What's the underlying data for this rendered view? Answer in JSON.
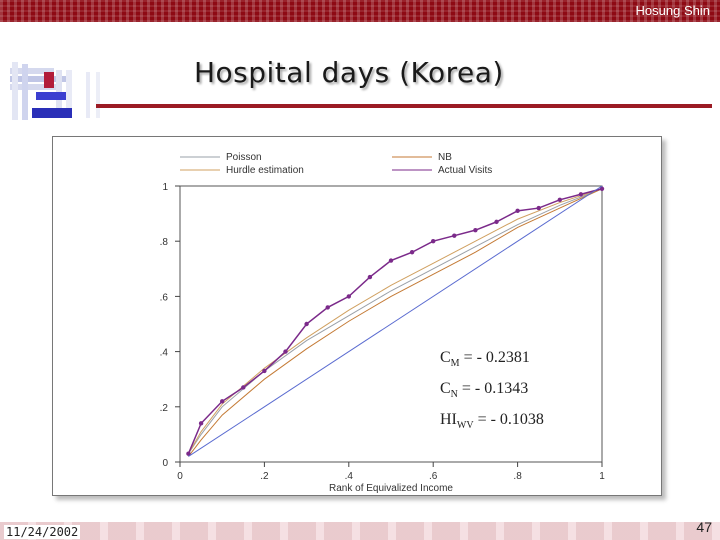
{
  "header": {
    "author": "Hosung Shin"
  },
  "slide": {
    "title": "Hospital days (Korea)",
    "date": "11/24/2002",
    "page_number": "47"
  },
  "stats": {
    "cm": {
      "base": "C",
      "sub": "M",
      "value": "=   - 0.2381"
    },
    "cn": {
      "base": "C",
      "sub": "N",
      "value": "=   - 0.1343"
    },
    "hi": {
      "base": "HI",
      "sub": "WV",
      "value": "= - 0.1038"
    }
  },
  "chart_data": {
    "type": "line",
    "xlabel": "Rank of Equivalized Income",
    "ylabel": "",
    "xlim": [
      0,
      1
    ],
    "ylim": [
      0,
      1
    ],
    "x_ticks": [
      0,
      0.2,
      0.4,
      0.6,
      0.8,
      1
    ],
    "x_tick_labels": [
      "0",
      ".2",
      ".4",
      ".6",
      ".8",
      "1"
    ],
    "y_ticks": [
      0,
      0.2,
      0.4,
      0.6,
      0.8,
      1
    ],
    "y_tick_labels": [
      "0",
      ".2",
      ".4",
      ".6",
      ".8",
      "1"
    ],
    "legend": [
      "Poisson",
      "NB",
      "Hurdle estimation",
      "Actual Visits"
    ],
    "legend_position": "top",
    "series": [
      {
        "name": "Poisson",
        "color": "#9aa0a8",
        "x": [
          0.02,
          0.05,
          0.1,
          0.2,
          0.3,
          0.4,
          0.5,
          0.6,
          0.7,
          0.8,
          0.9,
          1.0
        ],
        "y": [
          0.03,
          0.1,
          0.2,
          0.33,
          0.44,
          0.53,
          0.62,
          0.7,
          0.78,
          0.86,
          0.93,
          0.99
        ]
      },
      {
        "name": "NB",
        "color": "#c47a35",
        "x": [
          0.02,
          0.05,
          0.1,
          0.2,
          0.3,
          0.4,
          0.5,
          0.6,
          0.7,
          0.8,
          0.9,
          1.0
        ],
        "y": [
          0.02,
          0.08,
          0.17,
          0.3,
          0.41,
          0.51,
          0.6,
          0.68,
          0.76,
          0.85,
          0.92,
          0.99
        ]
      },
      {
        "name": "Hurdle estimation",
        "color": "#d0a060",
        "x": [
          0.02,
          0.05,
          0.1,
          0.2,
          0.3,
          0.4,
          0.5,
          0.6,
          0.7,
          0.8,
          0.9,
          1.0
        ],
        "y": [
          0.03,
          0.11,
          0.21,
          0.34,
          0.45,
          0.55,
          0.64,
          0.72,
          0.8,
          0.88,
          0.94,
          0.99
        ]
      },
      {
        "name": "Actual Visits",
        "color": "#7b2a8a",
        "x": [
          0.02,
          0.05,
          0.1,
          0.15,
          0.2,
          0.25,
          0.3,
          0.35,
          0.4,
          0.45,
          0.5,
          0.55,
          0.6,
          0.65,
          0.7,
          0.75,
          0.8,
          0.85,
          0.9,
          0.95,
          1.0
        ],
        "y": [
          0.03,
          0.14,
          0.22,
          0.27,
          0.33,
          0.4,
          0.5,
          0.56,
          0.6,
          0.67,
          0.73,
          0.76,
          0.8,
          0.82,
          0.84,
          0.87,
          0.91,
          0.92,
          0.95,
          0.97,
          0.99
        ]
      },
      {
        "name": "Line of equality",
        "color": "#5a6bd0",
        "x": [
          0.02,
          1.0
        ],
        "y": [
          0.02,
          1.0
        ]
      }
    ]
  },
  "colors": {
    "accent_red": "#8e0a14",
    "rule_red": "#9b1b24"
  }
}
